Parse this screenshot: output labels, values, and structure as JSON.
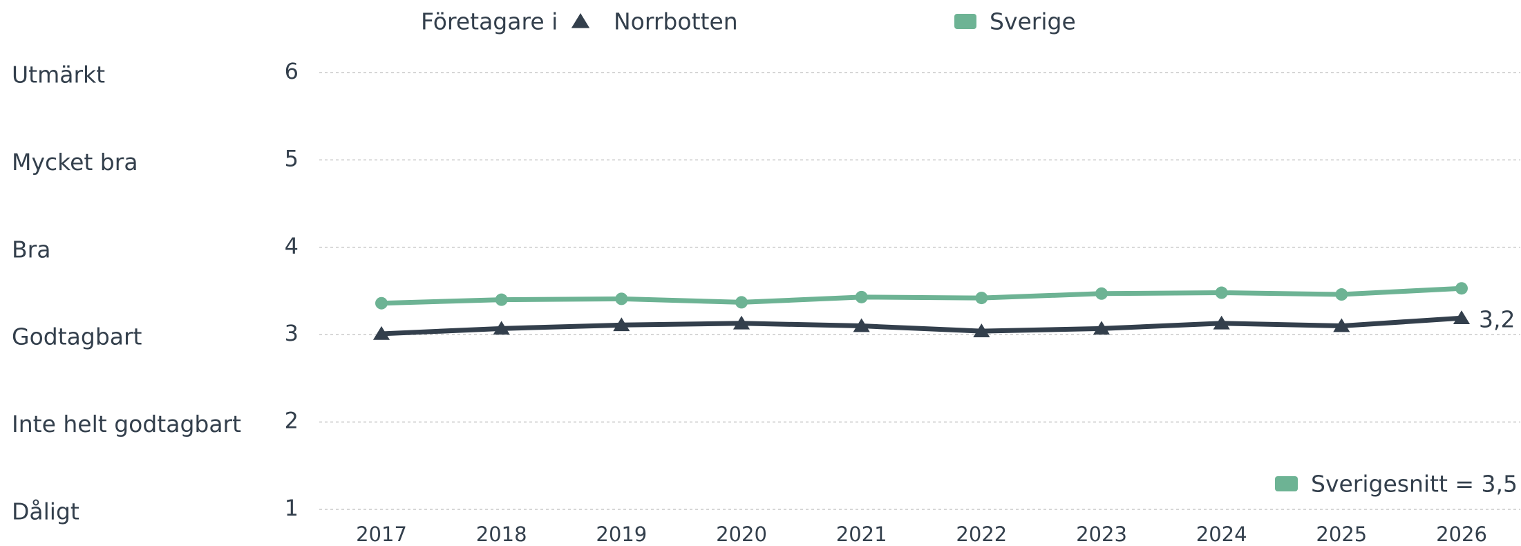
{
  "chart_data": {
    "type": "line",
    "legend_title": "Företagare i",
    "categories": [
      "2017",
      "2018",
      "2019",
      "2020",
      "2021",
      "2022",
      "2023",
      "2024",
      "2025",
      "2026"
    ],
    "series": [
      {
        "name": "Norrbotten",
        "color": "#333f4c",
        "marker": "triangle",
        "values": [
          3.01,
          3.07,
          3.11,
          3.13,
          3.1,
          3.04,
          3.07,
          3.13,
          3.1,
          3.19
        ],
        "value_labels": [
          null,
          null,
          null,
          null,
          null,
          null,
          null,
          null,
          null,
          "3,2"
        ]
      },
      {
        "name": "Sverige",
        "color": "#6db394",
        "marker": "circle",
        "values": [
          3.36,
          3.4,
          3.41,
          3.37,
          3.43,
          3.42,
          3.47,
          3.48,
          3.46,
          3.53
        ]
      }
    ],
    "ylim": [
      1,
      6
    ],
    "yticks": [
      1,
      2,
      3,
      4,
      5,
      6
    ],
    "ytick_names": [
      "Dåligt",
      "Inte helt godtagbart",
      "Godtagbart",
      "Bra",
      "Mycket bra",
      "Utmärkt"
    ],
    "annotation": "Sverigesnitt = 3,5",
    "grid": true
  }
}
